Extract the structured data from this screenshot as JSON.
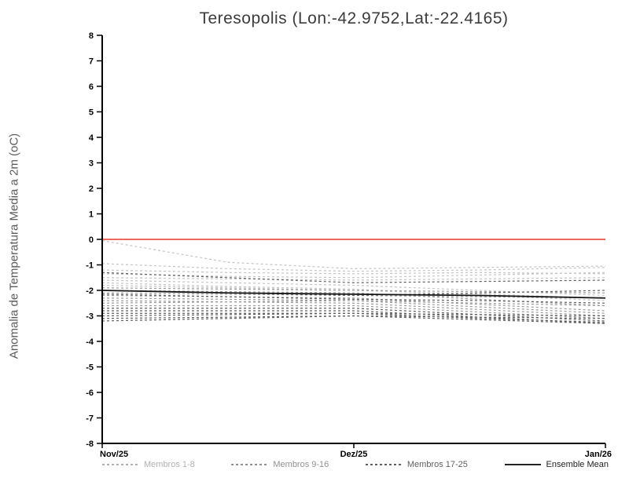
{
  "chart_data": {
    "type": "line",
    "title": "Teresopolis (Lon:-42.9752,Lat:-22.4165)",
    "ylabel": "Anomalia de Temperatura Media a 2m (oC)",
    "xlabel": "",
    "xlim": [
      0,
      2
    ],
    "ylim": [
      -8,
      8
    ],
    "x": [
      0,
      0.5,
      1,
      1.5,
      2
    ],
    "x_ticks": [
      0,
      1,
      2
    ],
    "x_tick_labels": [
      "Nov/25",
      "Dez/25",
      "Jan/26"
    ],
    "y_ticks": [
      8,
      7,
      6,
      5,
      4,
      3,
      2,
      1,
      0,
      -1,
      -2,
      -3,
      -4,
      -5,
      -6,
      -7,
      -8
    ],
    "y_tick_labels": [
      "8",
      "7",
      "6",
      "5",
      "4",
      "3",
      "2",
      "1",
      "0",
      "-1",
      "-2",
      "-3",
      "-4",
      "-5",
      "-6",
      "-7",
      "-8"
    ],
    "grid": false,
    "zero_line": {
      "y": 0,
      "color": "#e8392a"
    },
    "groups": [
      {
        "name": "Membros 1-8",
        "color": "#c4c4c4",
        "dash": "3 3",
        "members": [
          [
            -0.05,
            -0.9,
            -1.15,
            -1.1,
            -1.05
          ],
          [
            -0.95,
            -1.15,
            -1.25,
            -1.2,
            -1.1
          ],
          [
            -1.2,
            -1.3,
            -1.35,
            -1.3,
            -1.35
          ],
          [
            -1.35,
            -1.45,
            -1.5,
            -1.4,
            -1.3
          ],
          [
            -1.5,
            -1.55,
            -1.6,
            -1.55,
            -1.5
          ],
          [
            -1.6,
            -1.7,
            -1.8,
            -2.0,
            -2.2
          ],
          [
            -1.7,
            -1.85,
            -1.95,
            -2.2,
            -2.4
          ],
          [
            -1.8,
            -1.9,
            -2.0,
            -2.15,
            -2.3
          ]
        ]
      },
      {
        "name": "Membros 9-16",
        "color": "#9a9a9a",
        "dash": "3 3",
        "members": [
          [
            -1.9,
            -1.95,
            -2.0,
            -2.05,
            -2.1
          ],
          [
            -2.0,
            -2.05,
            -2.1,
            -2.35,
            -2.6
          ],
          [
            -2.1,
            -2.15,
            -2.2,
            -2.25,
            -2.3
          ],
          [
            -2.2,
            -2.25,
            -2.3,
            -2.55,
            -2.8
          ],
          [
            -2.3,
            -2.35,
            -2.4,
            -2.65,
            -2.9
          ],
          [
            -2.4,
            -2.45,
            -2.5,
            -2.75,
            -3.0
          ],
          [
            -2.5,
            -2.45,
            -2.4,
            -2.5,
            -2.6
          ],
          [
            -2.6,
            -2.6,
            -2.6,
            -2.85,
            -3.1
          ]
        ]
      },
      {
        "name": "Membros 17-25",
        "color": "#5f5f5f",
        "dash": "3 3",
        "members": [
          [
            -2.7,
            -2.7,
            -2.7,
            -2.95,
            -3.2
          ],
          [
            -2.8,
            -2.8,
            -2.8,
            -3.05,
            -3.3
          ],
          [
            -2.9,
            -2.9,
            -2.9,
            -2.95,
            -3.0
          ],
          [
            -3.0,
            -2.95,
            -2.9,
            -3.1,
            -3.25
          ],
          [
            -3.1,
            -3.05,
            -3.0,
            -3.15,
            -3.3
          ],
          [
            -3.2,
            -3.1,
            -3.0,
            -3.05,
            -3.1
          ],
          [
            -2.0,
            -2.1,
            -2.2,
            -2.1,
            -2.0
          ],
          [
            -1.3,
            -1.5,
            -1.7,
            -1.65,
            -1.6
          ],
          [
            -2.15,
            -2.25,
            -2.35,
            -2.4,
            -2.5
          ]
        ]
      }
    ],
    "ensemble_mean": {
      "name": "Ensemble Mean",
      "color": "#161616",
      "values": [
        -2.0,
        -2.1,
        -2.15,
        -2.2,
        -2.3
      ]
    },
    "legend": [
      {
        "label": "Membros 1-8",
        "color": "#b0b0b0",
        "dash": true
      },
      {
        "label": "Membros 9-16",
        "color": "#909090",
        "dash": true
      },
      {
        "label": "Membros 17-25",
        "color": "#5f5f5f",
        "dash": true
      },
      {
        "label": "Ensemble Mean",
        "color": "#222222",
        "dash": false
      }
    ],
    "legend_position": "bottom"
  }
}
